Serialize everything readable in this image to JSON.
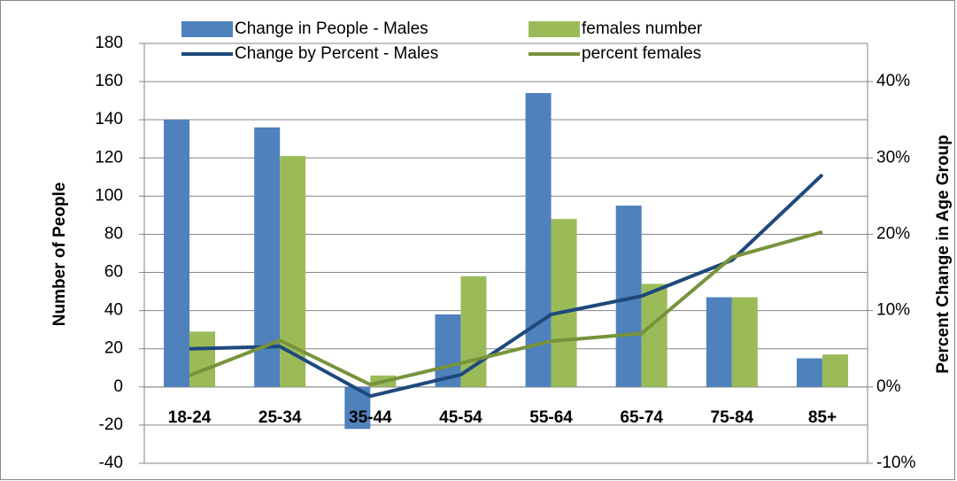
{
  "chart_data": {
    "type": "bar-line",
    "categories": [
      "18-24",
      "25-34",
      "35-44",
      "45-54",
      "55-64",
      "65-74",
      "75-84",
      "85+"
    ],
    "y_label": "Number of People",
    "y2_label": "Percent Change in Age Group",
    "ylim": [
      -40,
      180
    ],
    "yticks": [
      -40,
      -20,
      0,
      20,
      40,
      60,
      80,
      100,
      120,
      140,
      160,
      180
    ],
    "y2lim": [
      -10,
      45
    ],
    "y2ticks": [
      {
        "value": -10,
        "label": "-10%"
      },
      {
        "value": 0,
        "label": "0%"
      },
      {
        "value": 10,
        "label": "10%"
      },
      {
        "value": 20,
        "label": "20%"
      },
      {
        "value": 30,
        "label": "30%"
      },
      {
        "value": 40,
        "label": "40%"
      }
    ],
    "grid": true,
    "legend": "top",
    "series": [
      {
        "name": "Change in People - Males",
        "type": "bar",
        "color": "#4f81bd",
        "values": [
          140,
          136,
          -22,
          38,
          154,
          95,
          47,
          15
        ]
      },
      {
        "name": "females number",
        "type": "bar",
        "color": "#9bbb59",
        "values": [
          29,
          121,
          6,
          58,
          88,
          54,
          47,
          17
        ]
      },
      {
        "name": "Change by Percent - Males",
        "type": "line",
        "axis": "y2",
        "color": "#1f497d",
        "values": [
          5.0,
          5.3,
          -1.2,
          1.6,
          9.5,
          11.9,
          16.6,
          27.8
        ]
      },
      {
        "name": "percent females",
        "type": "line",
        "axis": "y2",
        "color": "#77933c",
        "values": [
          1.5,
          6.1,
          0.3,
          3.1,
          6.0,
          7.0,
          17.0,
          20.3
        ]
      }
    ]
  }
}
